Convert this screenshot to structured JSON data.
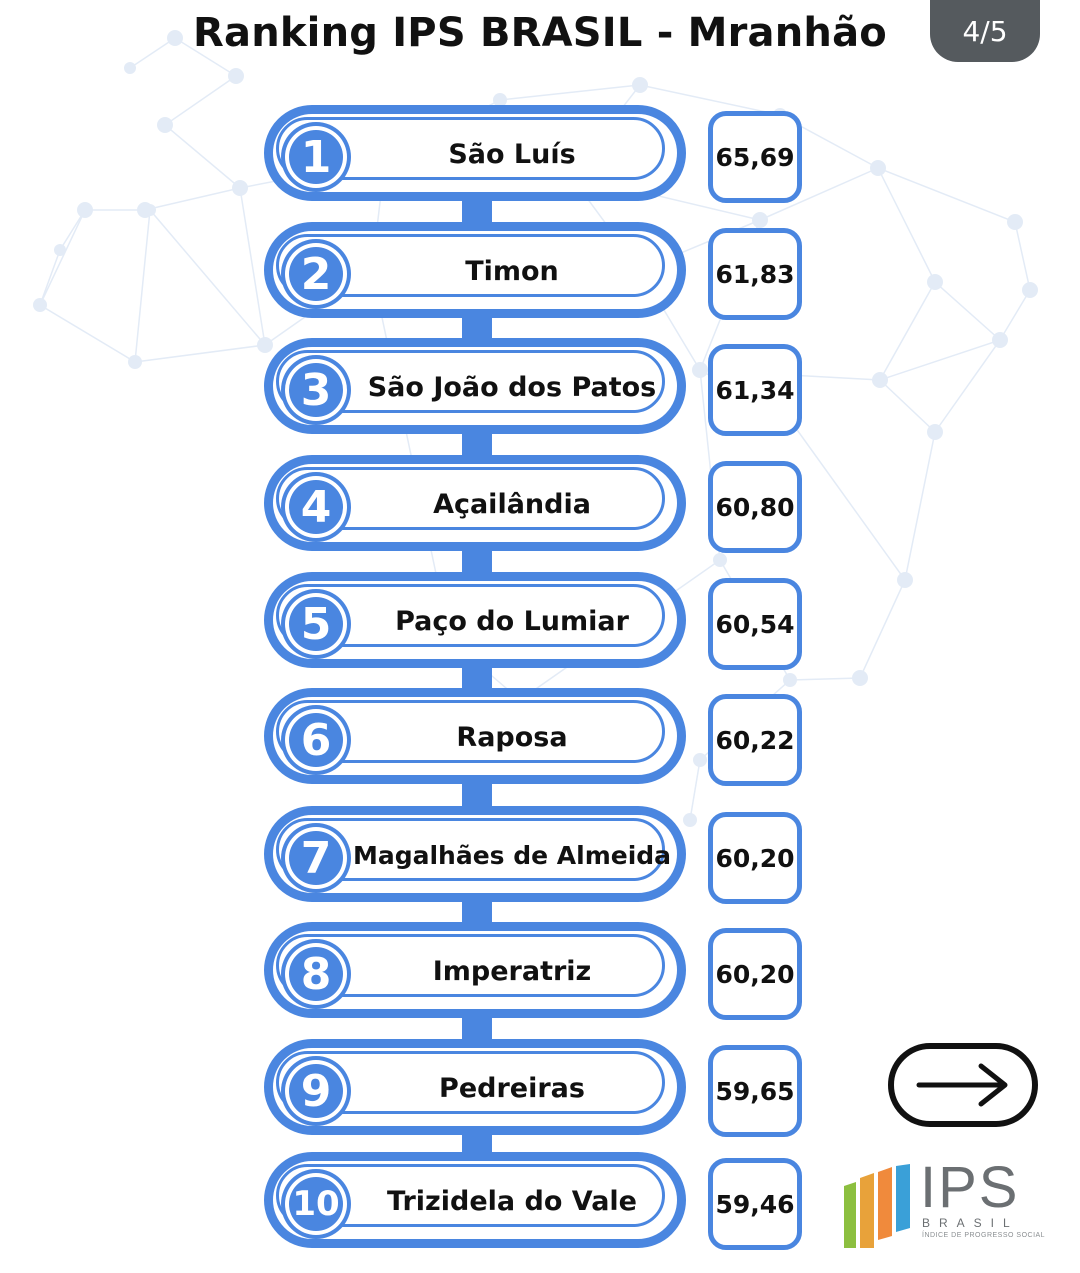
{
  "header": {
    "title": "Ranking IPS BRASIL - Mranhão",
    "page_indicator": "4/5"
  },
  "colors": {
    "accent": "#4a86e0",
    "badge_bg": "#555a5e",
    "network_lines": "#dfe8f4"
  },
  "ranking": [
    {
      "rank": "1",
      "city": "São Luís",
      "score": "65,69"
    },
    {
      "rank": "2",
      "city": "Timon",
      "score": "61,83"
    },
    {
      "rank": "3",
      "city": "São João dos Patos",
      "score": "61,34"
    },
    {
      "rank": "4",
      "city": "Açailândia",
      "score": "60,80"
    },
    {
      "rank": "5",
      "city": "Paço do Lumiar",
      "score": "60,54"
    },
    {
      "rank": "6",
      "city": "Raposa",
      "score": "60,22"
    },
    {
      "rank": "7",
      "city": "Magalhães de Almeida",
      "score": "60,20"
    },
    {
      "rank": "8",
      "city": "Imperatriz",
      "score": "60,20"
    },
    {
      "rank": "9",
      "city": "Pedreiras",
      "score": "59,65"
    },
    {
      "rank": "10",
      "city": "Trizidela do Vale",
      "score": "59,46"
    }
  ],
  "next_button": {
    "icon": "arrow-right-icon"
  },
  "logo": {
    "name": "IPS",
    "subtitle": "BRASIL",
    "tagline": "ÍNDICE DE PROGRESSO SOCIAL"
  }
}
